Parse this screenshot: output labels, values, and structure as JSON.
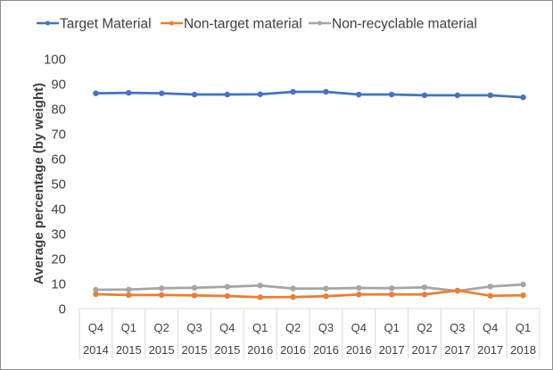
{
  "chart_data": {
    "type": "line",
    "title": "",
    "xlabel": "",
    "ylabel": "Average percentage (by weight)",
    "ylim": [
      0,
      100
    ],
    "yticks": [
      0,
      10,
      20,
      30,
      40,
      50,
      60,
      70,
      80,
      90,
      100
    ],
    "grid": false,
    "legend_position": "top",
    "categories": [
      {
        "quarter": "Q4",
        "year": "2014"
      },
      {
        "quarter": "Q1",
        "year": "2015"
      },
      {
        "quarter": "Q2",
        "year": "2015"
      },
      {
        "quarter": "Q3",
        "year": "2015"
      },
      {
        "quarter": "Q4",
        "year": "2015"
      },
      {
        "quarter": "Q1",
        "year": "2016"
      },
      {
        "quarter": "Q2",
        "year": "2016"
      },
      {
        "quarter": "Q3",
        "year": "2016"
      },
      {
        "quarter": "Q4",
        "year": "2016"
      },
      {
        "quarter": "Q1",
        "year": "2017"
      },
      {
        "quarter": "Q2",
        "year": "2017"
      },
      {
        "quarter": "Q3",
        "year": "2017"
      },
      {
        "quarter": "Q4",
        "year": "2017"
      },
      {
        "quarter": "Q1",
        "year": "2018"
      }
    ],
    "series": [
      {
        "name": "Target Material",
        "color": "#4472c4",
        "values": [
          86.2,
          86.4,
          86.2,
          85.7,
          85.7,
          85.8,
          86.8,
          86.8,
          85.7,
          85.7,
          85.4,
          85.4,
          85.4,
          84.6
        ]
      },
      {
        "name": "Non-target material",
        "color": "#ed7d31",
        "values": [
          5.7,
          5.4,
          5.4,
          5.2,
          5.0,
          4.5,
          4.6,
          4.9,
          5.6,
          5.6,
          5.6,
          7.2,
          5.1,
          5.3
        ]
      },
      {
        "name": "Non-recyclable material",
        "color": "#a5a5a5",
        "values": [
          7.5,
          7.6,
          8.1,
          8.3,
          8.7,
          9.2,
          8.0,
          8.0,
          8.2,
          8.1,
          8.5,
          7.0,
          8.8,
          9.6
        ]
      }
    ]
  }
}
